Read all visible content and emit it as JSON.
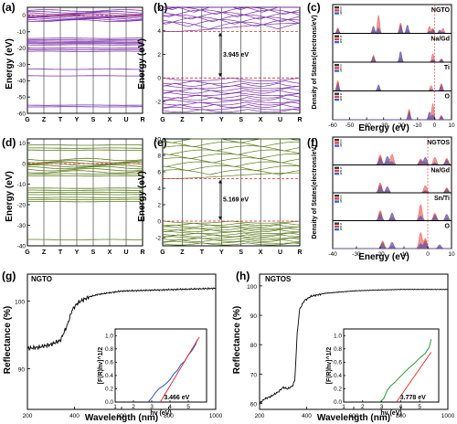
{
  "panels": {
    "a": {
      "letter": "(a)"
    },
    "b": {
      "letter": "(b)"
    },
    "c": {
      "letter": "(c)"
    },
    "d": {
      "letter": "(d)"
    },
    "e": {
      "letter": "(e)"
    },
    "f": {
      "letter": "(f)"
    },
    "g": {
      "letter": "(g)"
    },
    "h": {
      "letter": "(h)"
    }
  },
  "colors": {
    "ngto_band": "#7a2fa8",
    "ngtos_band": "#5e7d1c",
    "fermi": "#e0282a",
    "dos_s": "#333333",
    "dos_p": "#e8403a",
    "dos_d": "#3b63d6",
    "dos_fill_p": "#f2a3a3",
    "inset_ngto_curve": "#2a56c6",
    "inset_ngtos_curve": "#2a9a3a",
    "tangent": "#e0282a"
  },
  "chart_data": [
    {
      "id": "a",
      "type": "line",
      "title": "",
      "ylabel": "Energy (eV)",
      "ylim": [
        -60,
        5
      ],
      "yticks": [
        "0",
        "-10",
        "-20",
        "-30",
        "-40",
        "-50",
        "-60"
      ],
      "path_labels": [
        "G",
        "Z",
        "T",
        "Y",
        "S",
        "X",
        "U",
        "R"
      ],
      "band_energies": [
        3,
        2,
        1.2,
        0.5,
        -0.2,
        -0.6,
        -1,
        -1.5,
        -2,
        -2.6,
        -3.2,
        -14,
        -15,
        -15.8,
        -16.5,
        -17.2,
        -18,
        -20,
        -21,
        -22,
        -33,
        -37,
        -55,
        -56
      ]
    },
    {
      "id": "b",
      "type": "line",
      "ylabel": "Energy (eV)",
      "ylim": [
        -3,
        6
      ],
      "yticks": [
        "6",
        "4",
        "2",
        "0",
        "-2"
      ],
      "path_labels": [
        "G",
        "Z",
        "T",
        "Y",
        "S",
        "X",
        "U",
        "R"
      ],
      "gap_label": "3.945 eV",
      "cbm": 3.945,
      "vbm": 0
    },
    {
      "id": "c",
      "type": "area",
      "sample": "NGTO",
      "xlabel": "Energy (eV)",
      "ylabel": "Density of States(electrons/eV)",
      "xlim": [
        -60,
        10
      ],
      "xticks": [
        "-60",
        "-50",
        "-40",
        "-30",
        "-20",
        "-10",
        "0",
        "10"
      ],
      "rows": [
        {
          "name": "NGTO",
          "peaks": [
            [
              -57,
              20
            ],
            [
              -36,
              26
            ],
            [
              -33,
              36
            ],
            [
              -20,
              38
            ],
            [
              -16,
              30
            ],
            [
              -3,
              14
            ],
            [
              -1,
              18
            ],
            [
              3,
              12
            ],
            [
              5,
              10
            ]
          ]
        },
        {
          "name": "Na/Gd",
          "peaks": [
            [
              -36,
              6
            ],
            [
              -20,
              9
            ],
            [
              -1,
              4
            ],
            [
              4,
              3
            ]
          ]
        },
        {
          "name": "Ti",
          "peaks": [
            [
              -57,
              7
            ],
            [
              -33,
              4
            ],
            [
              -2,
              2
            ],
            [
              4,
              5
            ]
          ]
        },
        {
          "name": "O",
          "peaks": [
            [
              -15,
              7
            ],
            [
              -3,
              5
            ],
            [
              -1,
              6
            ],
            [
              4,
              3
            ]
          ]
        }
      ],
      "legend": [
        "s",
        "p",
        "d"
      ]
    },
    {
      "id": "d",
      "type": "line",
      "ylabel": "Energy (eV)",
      "ylim": [
        -40,
        12
      ],
      "yticks": [
        "10",
        "0",
        "-10",
        "-20",
        "-30",
        "-40"
      ],
      "path_labels": [
        "G",
        "Z",
        "T",
        "Y",
        "S",
        "X",
        "U",
        "R"
      ],
      "band_energies": [
        9,
        7.5,
        6.5,
        2,
        1,
        0.2,
        -0.5,
        -1.2,
        -2,
        -3,
        -4,
        -5,
        -6,
        -12,
        -13,
        -14,
        -15,
        -16.5,
        -17.5,
        -18.5,
        -37
      ]
    },
    {
      "id": "e",
      "type": "line",
      "ylabel": "Energy (eV)",
      "ylim": [
        -3,
        10
      ],
      "yticks": [
        "10",
        "8",
        "6",
        "4",
        "2",
        "0",
        "-2"
      ],
      "path_labels": [
        "G",
        "Z",
        "T",
        "Y",
        "S",
        "X",
        "U",
        "R"
      ],
      "gap_label": "5.169 eV",
      "cbm": 5.169,
      "vbm": 0
    },
    {
      "id": "f",
      "type": "area",
      "sample": "NGTOS",
      "xlabel": "Energy (eV)",
      "ylabel": "Density of States(electrons/eV)",
      "xlim": [
        -40,
        10
      ],
      "xticks": [
        "-40",
        "-30",
        "-20",
        "-10",
        "0",
        "10"
      ],
      "rows": [
        {
          "name": "NGTOS",
          "peaks": [
            [
              -20,
              24
            ],
            [
              -17,
              20
            ],
            [
              -15,
              14
            ],
            [
              -3,
              14
            ],
            [
              -1,
              18
            ],
            [
              3,
              10
            ],
            [
              8,
              16
            ]
          ]
        },
        {
          "name": "Na/Gd",
          "peaks": [
            [
              -20,
              10
            ],
            [
              -17,
              6
            ],
            [
              -1,
              4
            ],
            [
              8,
              5
            ]
          ]
        },
        {
          "name": "Sn/Ti",
          "peaks": [
            [
              -20,
              8
            ],
            [
              -15,
              6
            ],
            [
              -3,
              7
            ],
            [
              3,
              6
            ],
            [
              8,
              5
            ]
          ]
        },
        {
          "name": "O",
          "peaks": [
            [
              -19,
              6
            ],
            [
              -15,
              5
            ],
            [
              -3,
              7
            ],
            [
              -1,
              8
            ],
            [
              5,
              3
            ]
          ]
        }
      ],
      "legend": [
        "s",
        "p",
        "d"
      ]
    },
    {
      "id": "g",
      "type": "line",
      "sample": "NGTO",
      "xlabel": "Wavelength (nm)",
      "ylabel": "Reflectance (%)",
      "xlim": [
        200,
        1000
      ],
      "ylim": [
        84,
        104
      ],
      "xticks": [
        "200",
        "400",
        "600",
        "800",
        "1000"
      ],
      "yticks": [
        "90",
        "100"
      ],
      "x": [
        200,
        250,
        300,
        340,
        370,
        390,
        410,
        430,
        460,
        500,
        600,
        700,
        800,
        900,
        1000
      ],
      "y": [
        93,
        93.2,
        93.6,
        94.2,
        96.5,
        98.7,
        99.6,
        100.1,
        100.6,
        101.0,
        101.5,
        101.6,
        101.7,
        101.8,
        101.9
      ],
      "inset": {
        "xlabel": "hv (eV)",
        "ylabel": "[F(R)hv]^1/2",
        "xlim": [
          1,
          6
        ],
        "ylim": [
          0,
          1.1
        ],
        "xticks": [
          "1",
          "2",
          "3",
          "4",
          "5"
        ],
        "yticks": [
          "0.0",
          "0.2",
          "0.4",
          "0.6",
          "0.8",
          "1.0"
        ],
        "x": [
          2.8,
          3.0,
          3.2,
          3.4,
          3.6,
          3.8,
          4.0,
          4.2,
          4.4,
          4.6,
          4.8,
          5.0,
          5.2,
          5.4,
          5.5
        ],
        "y": [
          0.0,
          0.06,
          0.14,
          0.2,
          0.24,
          0.28,
          0.34,
          0.42,
          0.48,
          0.56,
          0.62,
          0.7,
          0.78,
          0.86,
          0.95
        ],
        "gap_label": "3.466 eV",
        "tangent": [
          [
            3.466,
            0
          ],
          [
            5.6,
            0.98
          ]
        ]
      }
    },
    {
      "id": "h",
      "type": "line",
      "sample": "NGTOS",
      "xlabel": "Wavelength (nm)",
      "ylabel": "Reflectance (%)",
      "xlim": [
        200,
        1000
      ],
      "ylim": [
        58,
        104
      ],
      "xticks": [
        "200",
        "400",
        "600",
        "800",
        "1000"
      ],
      "yticks": [
        "60",
        "70",
        "80",
        "90",
        "100"
      ],
      "x": [
        200,
        220,
        250,
        280,
        300,
        320,
        340,
        350,
        360,
        370,
        390,
        420,
        480,
        600,
        700,
        800,
        900,
        980
      ],
      "y": [
        60,
        61.5,
        62.5,
        64,
        65.5,
        65,
        66,
        68,
        84,
        92,
        95,
        96.5,
        97.5,
        98.3,
        98.6,
        98.8,
        98.8,
        98.8
      ],
      "inset": {
        "xlabel": "hv (eV)",
        "ylabel": "[F(R)hv]^1/2",
        "xlim": [
          1,
          6
        ],
        "ylim": [
          0,
          1.1
        ],
        "xticks": [
          "1",
          "2",
          "3",
          "4",
          "5"
        ],
        "yticks": [
          "0.0",
          "0.2",
          "0.4",
          "0.6",
          "0.8",
          "1.0"
        ],
        "x": [
          2.9,
          3.1,
          3.3,
          3.5,
          3.7,
          3.9,
          4.1,
          4.4,
          4.7,
          5.0,
          5.3,
          5.5,
          5.6
        ],
        "y": [
          0.0,
          0.05,
          0.18,
          0.25,
          0.3,
          0.36,
          0.42,
          0.5,
          0.58,
          0.66,
          0.74,
          0.82,
          0.95
        ],
        "gap_label": "3.778 eV",
        "tangent": [
          [
            3.778,
            0
          ],
          [
            5.6,
            0.75
          ]
        ]
      }
    }
  ]
}
